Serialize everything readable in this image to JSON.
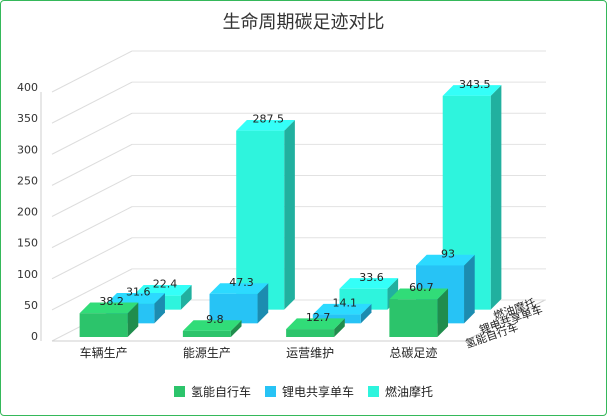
{
  "chart_data": {
    "type": "bar",
    "title": "生命周期碳足迹对比",
    "categories": [
      "车辆生产",
      "能源生产",
      "运营维护",
      "总碳足迹"
    ],
    "series": [
      {
        "name": "氢能自行车",
        "values": [
          38.2,
          9.8,
          12.7,
          60.7
        ],
        "color": "#2cc46b"
      },
      {
        "name": "锂电共享单车",
        "values": [
          31.6,
          47.3,
          14.1,
          93
        ],
        "color": "#27c3f5"
      },
      {
        "name": "燃油摩托",
        "values": [
          22.4,
          287.5,
          33.6,
          343.5
        ],
        "color": "#2ef4dd"
      }
    ],
    "y_ticks": [
      "0",
      "50",
      "100",
      "150",
      "200",
      "250",
      "300",
      "350",
      "400"
    ],
    "ylim": [
      0,
      400
    ],
    "grid": true,
    "legend_position": "bottom",
    "projection": "3d"
  }
}
